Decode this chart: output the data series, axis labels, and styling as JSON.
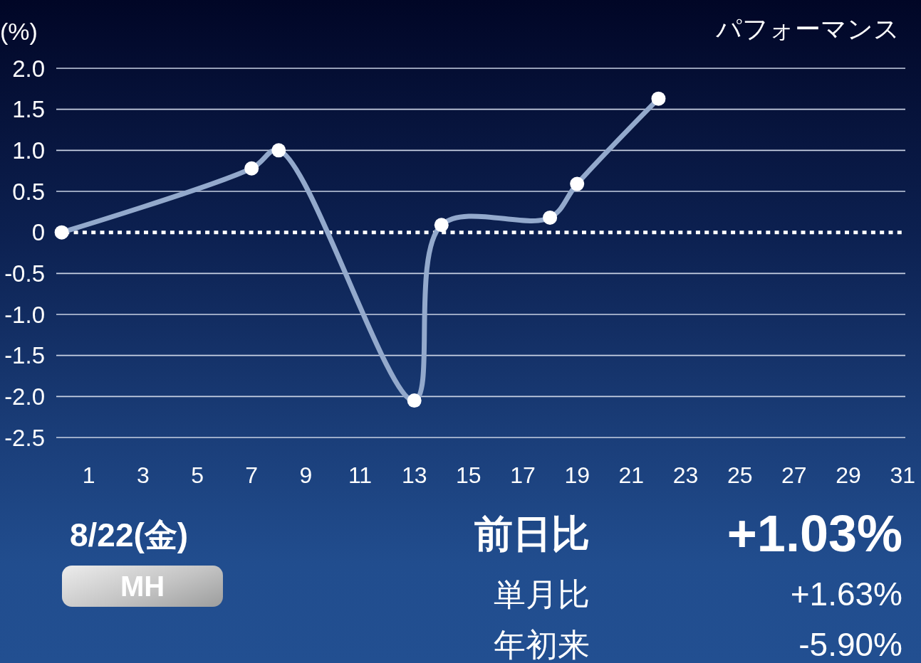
{
  "chart_data": {
    "type": "line",
    "title": "パフォーマンス",
    "ylabel": "(%)",
    "x": [
      0,
      7,
      8,
      13,
      14,
      18,
      19,
      22
    ],
    "series": [
      {
        "color": "#93a9cc",
        "values": [
          0,
          0.78,
          1.0,
          -2.05,
          0.09,
          0.18,
          0.59,
          1.63
        ]
      }
    ],
    "xlim": [
      -0.2,
      31.1
    ],
    "xticks": [
      1,
      3,
      5,
      7,
      9,
      11,
      13,
      15,
      17,
      19,
      21,
      23,
      25,
      27,
      29,
      31
    ],
    "ylim": [
      -2.5,
      2
    ],
    "yticks": [
      {
        "value": 2,
        "label": "2.0"
      },
      1.5,
      {
        "value": 1,
        "label": "1.0"
      },
      0.5,
      0,
      -0.5,
      {
        "value": -1,
        "label": "-1.0"
      },
      -1.5,
      {
        "value": -2,
        "label": "-2.0"
      },
      -2.5
    ],
    "grid": "y",
    "marker": "circle",
    "ref_lines": [
      {
        "axis": "y",
        "value": 0,
        "color": "#ffffff",
        "line_style": "dotted"
      }
    ],
    "annotations": [
      "8/22(金)",
      "MH",
      "前日比",
      "+1.03%",
      "単月比",
      "+1.63%",
      "年初来",
      "-5.90%"
    ]
  }
}
